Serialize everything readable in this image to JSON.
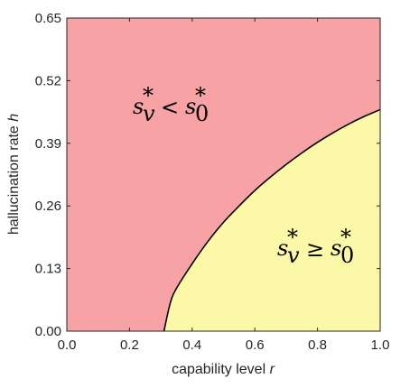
{
  "chart_data": {
    "type": "area",
    "title": "",
    "xlabel": {
      "text": "capability level ",
      "var": "r"
    },
    "ylabel": {
      "text": "hallucination rate ",
      "var": "h"
    },
    "xlim": [
      0.0,
      1.0
    ],
    "ylim": [
      0.0,
      0.65
    ],
    "x_ticks": [
      "0.0",
      "0.2",
      "0.4",
      "0.6",
      "0.8",
      "1.0"
    ],
    "y_ticks": [
      "0.00",
      "0.13",
      "0.26",
      "0.39",
      "0.52",
      "0.65"
    ],
    "grid": false,
    "regions": [
      {
        "name": "s_v* < s_0*",
        "color": "#f7a3a6"
      },
      {
        "name": "s_v* ≥ s_0*",
        "color": "#fbf9a8"
      }
    ],
    "boundary": {
      "color": "#000000",
      "x": [
        0.31,
        0.33,
        0.35,
        0.4,
        0.45,
        0.5,
        0.55,
        0.6,
        0.65,
        0.7,
        0.75,
        0.8,
        0.85,
        0.9,
        0.95,
        1.0
      ],
      "y": [
        0.0,
        0.058,
        0.089,
        0.14,
        0.186,
        0.226,
        0.26,
        0.292,
        0.32,
        0.346,
        0.37,
        0.392,
        0.412,
        0.43,
        0.446,
        0.46
      ]
    }
  }
}
